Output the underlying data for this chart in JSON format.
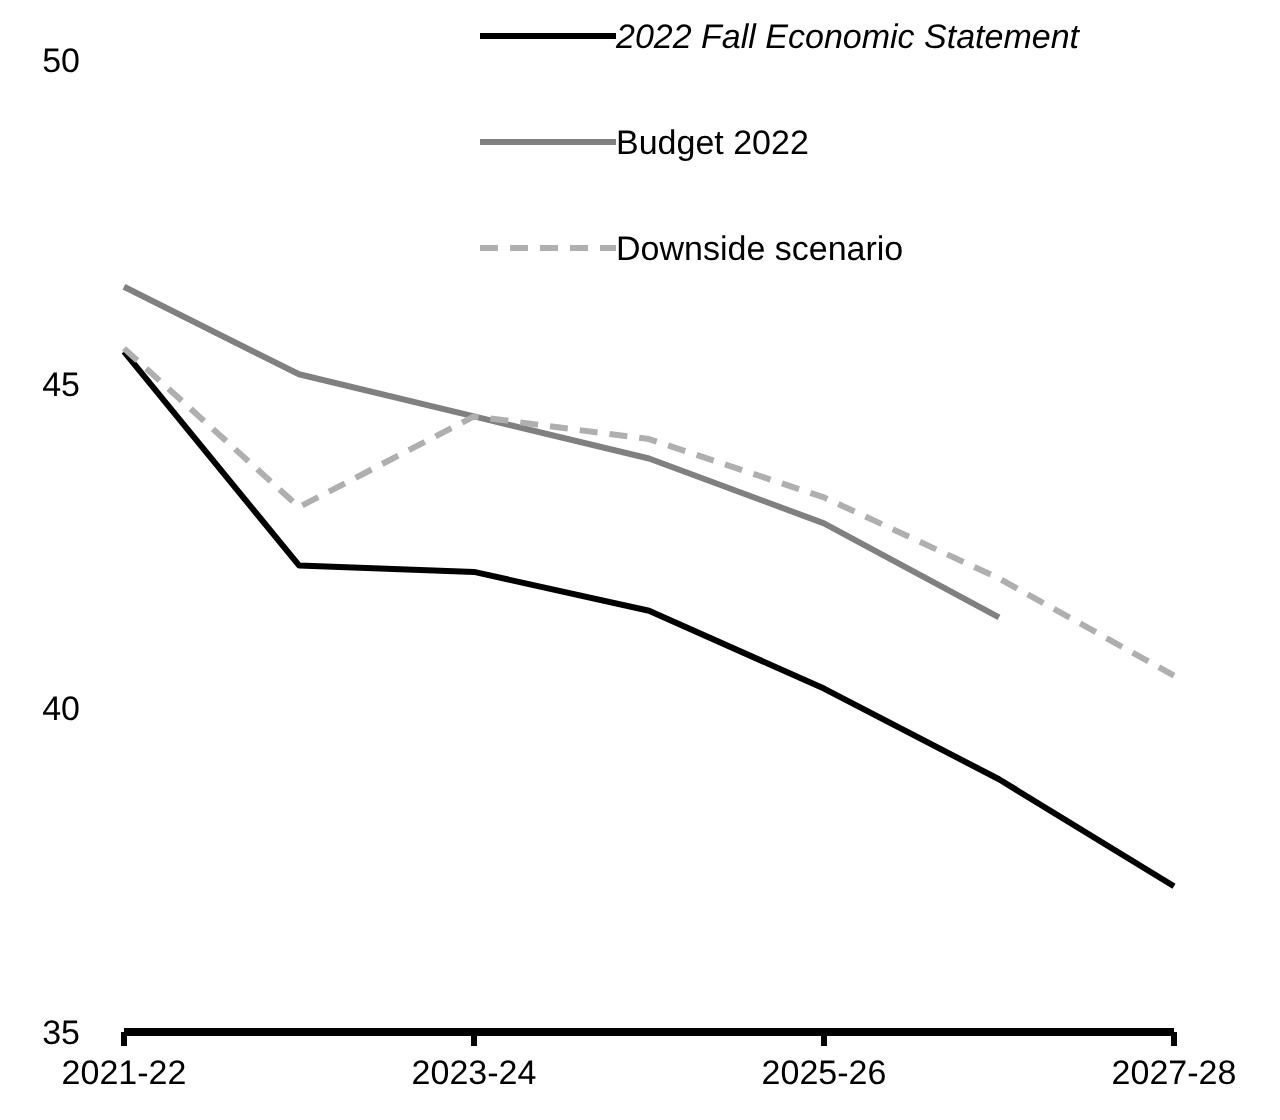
{
  "chart_data": {
    "type": "line",
    "categories": [
      "2021-22",
      null,
      "2023-24",
      null,
      "2025-26",
      null,
      "2027-28"
    ],
    "series": [
      {
        "name": "2022 Fall Economic Statement",
        "color": "#000000",
        "line_style": "solid",
        "values": [
          45.5,
          42.2,
          42.1,
          41.5,
          40.3,
          38.9,
          37.25
        ]
      },
      {
        "name": "Budget 2022",
        "color": "#808080",
        "line_style": "solid",
        "values": [
          46.5,
          45.15,
          44.5,
          43.85,
          42.85,
          41.4,
          null
        ]
      },
      {
        "name": "Downside scenario",
        "color": "#b0aeb0",
        "line_style": "dashed",
        "values": [
          45.55,
          43.1,
          44.5,
          44.15,
          43.25,
          42.0,
          40.5
        ]
      }
    ],
    "ylim": [
      35,
      50
    ],
    "yticks": [
      35,
      40,
      45,
      50
    ],
    "grid": false,
    "legend": "top right",
    "marker": "none"
  }
}
